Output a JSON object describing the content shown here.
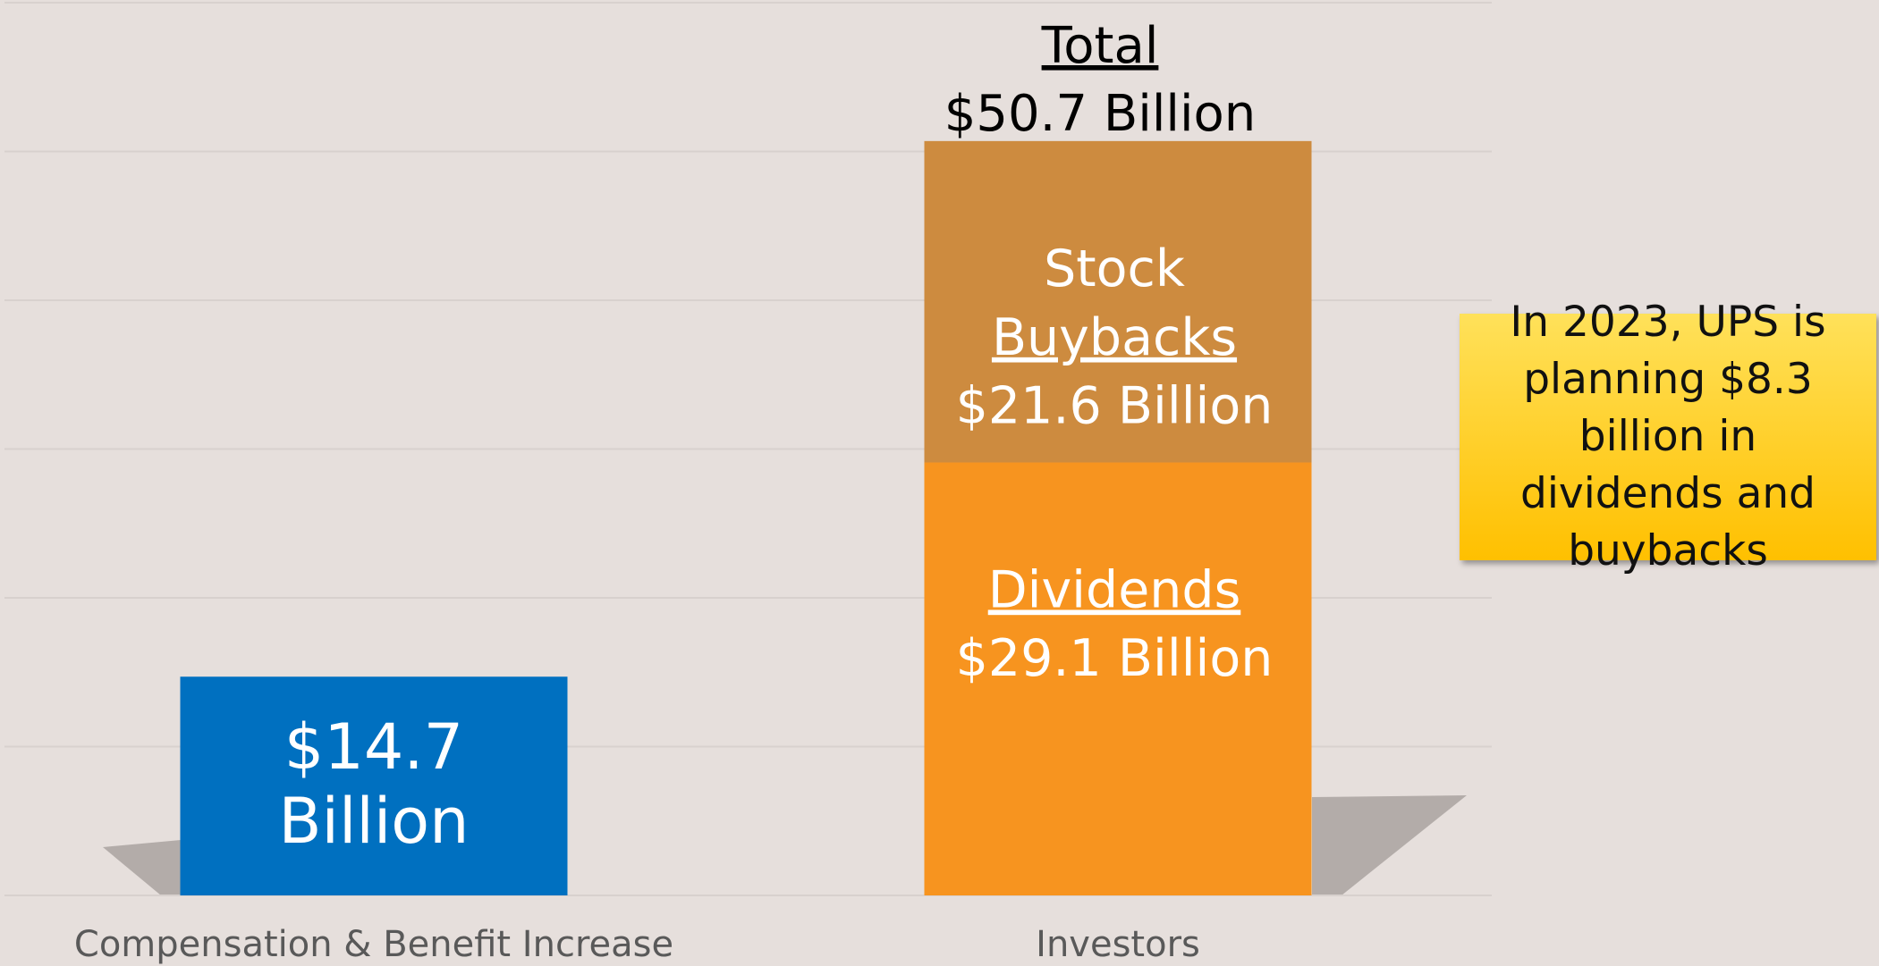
{
  "chart_data": {
    "type": "stacked_bar",
    "categories": [
      "Compensation & Benefit Increase",
      "Investors"
    ],
    "series": [
      {
        "color": "#0070c0",
        "values": [
          14.7,
          null
        ],
        "value_labels": [
          "$14.7 Billion",
          null
        ]
      },
      {
        "name": "Dividends",
        "color": "#f7941f",
        "values": [
          null,
          29.1
        ],
        "value_labels": [
          null,
          "$29.1 Billion"
        ]
      },
      {
        "name": "Stock Buybacks",
        "color": "#cd8b3f",
        "values": [
          null,
          21.6
        ],
        "value_labels": [
          null,
          "$21.6 Billion"
        ]
      }
    ],
    "total": {
      "label": "Total",
      "category": 1,
      "value": 50.7,
      "value_label": "$50.7 Billion"
    },
    "ylim": [
      0,
      60
    ],
    "yticks": [
      0,
      10,
      20,
      30,
      40,
      50,
      60
    ],
    "grid": true,
    "callout": "In 2023, UPS is planning $8.3 billion in dividends and buybacks"
  }
}
